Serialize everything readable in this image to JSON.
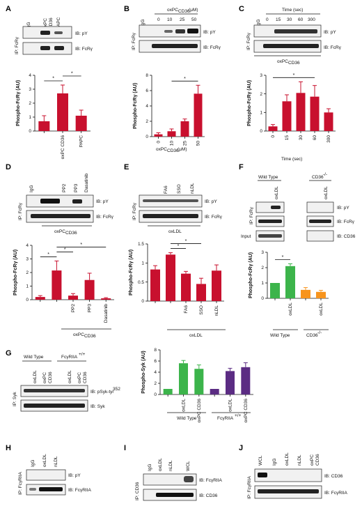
{
  "colors": {
    "red": "#c8102e",
    "green": "#3cb44b",
    "orange": "#f7941d",
    "purple": "#5b2c83",
    "band": "#1a1a1a"
  },
  "panels": {
    "A": "A",
    "B": "B",
    "C": "C",
    "D": "D",
    "E": "E",
    "F": "F",
    "G": "G",
    "H": "H",
    "I": "I",
    "J": "J"
  },
  "ib": {
    "py": "IB: pY",
    "fcr": "IB: FcRγ",
    "cd36": "IB: CD36",
    "psyk": "IB: pSyk-tyr",
    "psyk_sup": "352",
    "syk": "IB: Syk",
    "fcg2a": "IB: FcγRIIA"
  },
  "ip": {
    "fcr": "IP: FcRγ",
    "syk": "IP: Syk",
    "fcg2a": "IP: FcγRIIA",
    "cd36": "IP: CD36"
  },
  "lanes": {
    "A": [
      "IgG",
      "oxPC",
      "PAPC"
    ],
    "B": [
      "IgG",
      "0",
      "10",
      "25",
      "50"
    ],
    "C": [
      "IgG",
      "0",
      "15",
      "30",
      "60",
      "300"
    ],
    "D": [
      "IgG",
      "",
      "PP2",
      "PP3",
      "Dasatinib"
    ],
    "E": [
      "",
      "",
      "FA6",
      "SSO",
      "nLDL"
    ],
    "F": [
      "",
      "oxLDL",
      "",
      "oxLDL"
    ],
    "G": [
      "",
      "oxLDL",
      "oxPC",
      "",
      "oxLDL",
      "oxPC"
    ],
    "H": [
      "IgG",
      "oxLDL",
      "nLDL"
    ],
    "I": [
      "IgG",
      "oxLDL",
      "nLDL",
      "WCL"
    ],
    "J": [
      "WCL",
      "IgG",
      "oxLDL",
      "nLDL",
      "oxPC"
    ]
  },
  "sub": {
    "cd36": "CD36"
  },
  "labels": {
    "oxpc": "oxPC",
    "cd36sub": "CD36",
    "oxpc_um": "oxPC",
    "um": "(μM)",
    "time": "Time (sec)",
    "oxldl": "oxLDL",
    "input": "Input",
    "wild_type": "Wild Type",
    "cd36ko": "CD36",
    "ko_sup": "-/-",
    "fcg_wt": "FcγRIIA",
    "fcg_sup": "+/+",
    "star": "*"
  },
  "chart_data": [
    {
      "panel": "A",
      "type": "bar",
      "ylabel": "Phospho-FcRγ (AU)",
      "ylim": [
        0,
        4
      ],
      "yticks": [
        0,
        1,
        2,
        3,
        4
      ],
      "categories": [
        "",
        "oxPC CD36",
        "PAPC"
      ],
      "values": [
        0.7,
        2.7,
        1.1
      ],
      "errors": [
        0.4,
        0.6,
        0.4
      ],
      "color": "#c8102e",
      "sig": [
        [
          0,
          1
        ],
        [
          1,
          2
        ]
      ]
    },
    {
      "panel": "B",
      "type": "bar",
      "ylabel": "Phospho-FcRγ (AU)",
      "ylim": [
        0,
        8
      ],
      "yticks": [
        0,
        2,
        4,
        6,
        8
      ],
      "categories": [
        "0",
        "10",
        "25",
        "50"
      ],
      "values": [
        0.3,
        0.7,
        2.0,
        5.6
      ],
      "errors": [
        0.2,
        0.3,
        0.3,
        1.1
      ],
      "color": "#c8102e",
      "xlabel": "oxPC CD36 (μM)",
      "sig": [
        [
          1,
          3
        ]
      ]
    },
    {
      "panel": "C",
      "type": "bar",
      "ylabel": "Phospho-FcRγ (AU)",
      "ylim": [
        0,
        3
      ],
      "yticks": [
        0,
        1,
        2,
        3
      ],
      "categories": [
        "0",
        "15",
        "30",
        "60",
        "300"
      ],
      "values": [
        0.25,
        1.6,
        2.05,
        1.85,
        1.0
      ],
      "errors": [
        0.1,
        0.35,
        0.6,
        0.6,
        0.2
      ],
      "color": "#c8102e",
      "xlabel": "Time (sec)",
      "sig": [
        [
          0,
          3
        ]
      ]
    },
    {
      "panel": "D",
      "type": "bar",
      "ylabel": "Phospho-FcRγ (AU)",
      "ylim": [
        0,
        4
      ],
      "yticks": [
        0,
        1,
        2,
        3,
        4
      ],
      "categories": [
        "",
        "",
        "PP2",
        "PP3",
        "Dasatinib"
      ],
      "values": [
        0.2,
        2.15,
        0.3,
        1.45,
        0.1
      ],
      "errors": [
        0.1,
        0.7,
        0.15,
        0.5,
        0.05
      ],
      "color": "#c8102e",
      "sig": [
        [
          0,
          1
        ],
        [
          1,
          2
        ],
        [
          1,
          4
        ]
      ]
    },
    {
      "panel": "E",
      "type": "bar",
      "ylabel": "Phospho-FcRγ (AU)",
      "ylim": [
        0,
        1.5
      ],
      "yticks": [
        0,
        0.5,
        1.0,
        1.5
      ],
      "categories": [
        "",
        "",
        "FA6",
        "SSO",
        "nLDL"
      ],
      "values": [
        0.83,
        1.22,
        0.72,
        0.45,
        0.8
      ],
      "errors": [
        0.1,
        0.05,
        0.06,
        0.15,
        0.15
      ],
      "color": "#c8102e",
      "sig": [
        [
          1,
          2
        ],
        [
          1,
          3
        ]
      ]
    },
    {
      "panel": "F",
      "type": "bar",
      "ylabel": "Phospho-FcRγ (AU)",
      "ylim": [
        0,
        3
      ],
      "yticks": [
        0,
        1,
        2,
        3
      ],
      "categories": [
        "",
        "oxLDL",
        "",
        "oxLDL"
      ],
      "values": [
        1.0,
        2.1,
        0.55,
        0.42
      ],
      "errors": [
        0,
        0.15,
        0.15,
        0.1
      ],
      "colors": [
        "#3cb44b",
        "#3cb44b",
        "#f7941d",
        "#f7941d"
      ],
      "sig": [
        [
          0,
          1
        ]
      ]
    },
    {
      "panel": "G",
      "type": "bar",
      "ylabel": "Phospho-Syk (AU)",
      "ylim": [
        0,
        8
      ],
      "yticks": [
        0,
        2,
        4,
        6,
        8
      ],
      "categories": [
        "",
        "oxLDL",
        "oxPC CD36",
        "",
        "oxLDL",
        "oxPC CD36"
      ],
      "values": [
        1.0,
        5.6,
        4.6,
        1.0,
        4.2,
        4.9
      ],
      "errors": [
        0,
        0.5,
        0.7,
        0,
        0.5,
        0.8
      ],
      "colors": [
        "#3cb44b",
        "#3cb44b",
        "#3cb44b",
        "#5b2c83",
        "#5b2c83",
        "#5b2c83"
      ]
    }
  ]
}
